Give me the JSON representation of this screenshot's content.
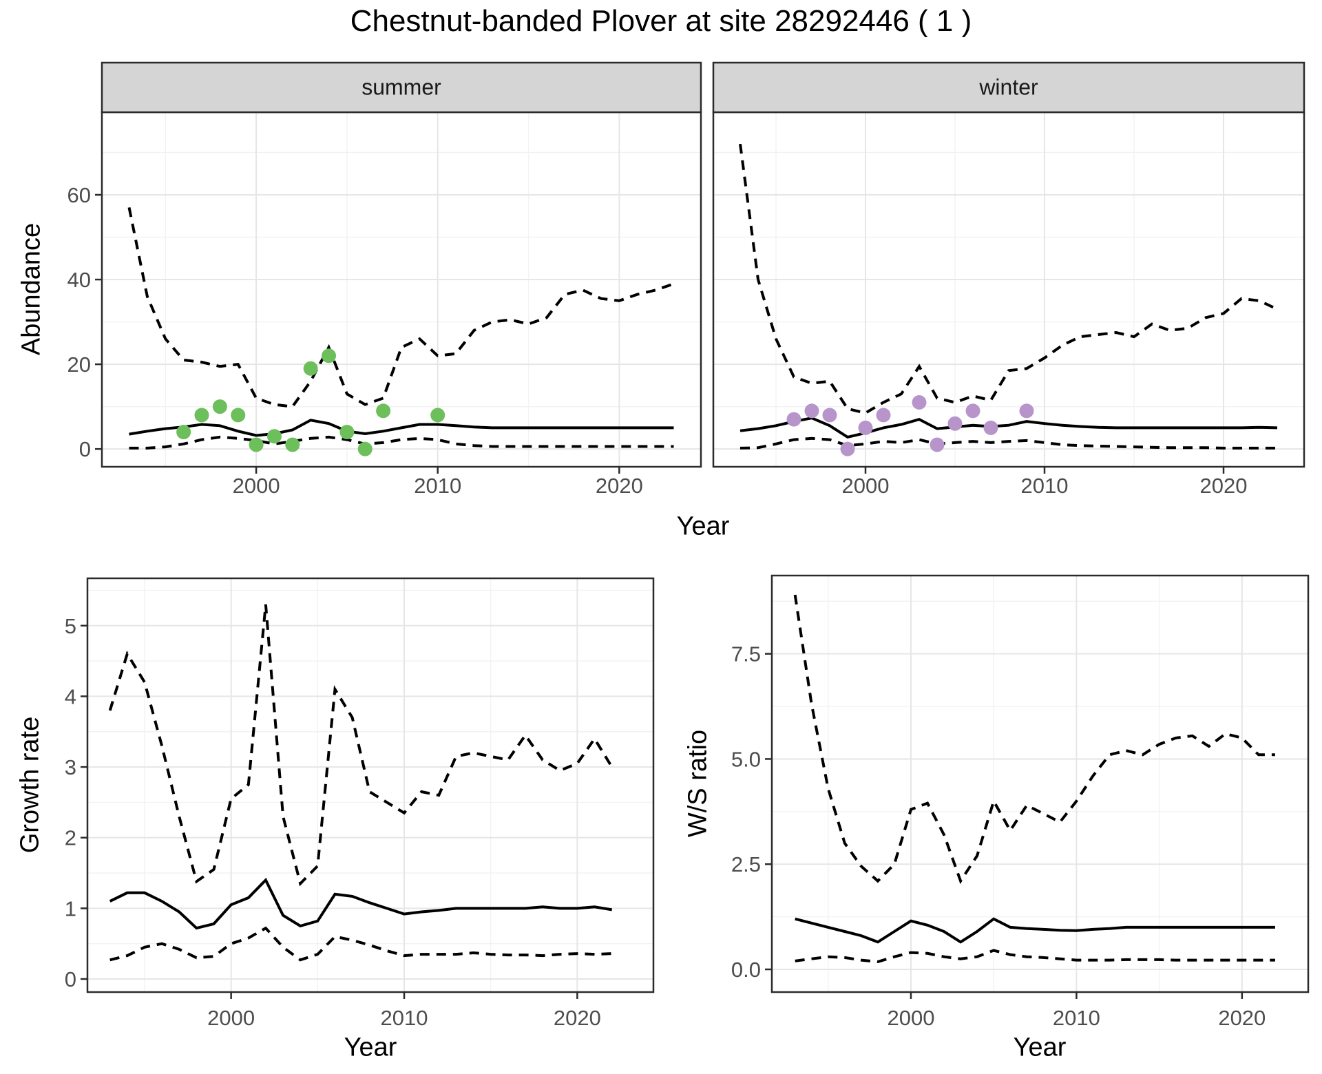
{
  "title": "Chestnut-banded Plover at site 28292446 ( 1 )",
  "axis_labels": {
    "top_x": "Year",
    "top_y": "Abundance",
    "bottom_left_x": "Year",
    "bottom_left_y": "Growth rate",
    "bottom_right_x": "Year",
    "bottom_right_y": "W/S ratio"
  },
  "colors": {
    "summer_point": "#6CBF5A",
    "winter_point": "#B795CB",
    "line": "#000000",
    "strip_fill": "#D5D5D5",
    "panel_border": "#2B2B2B",
    "grid_major": "#E6E6E6",
    "grid_minor": "#F2F2F2",
    "axis_text": "#4D4D4D",
    "background": "#FFFFFF"
  },
  "chart_data": [
    {
      "id": "abundance-summer",
      "type": "line",
      "facet_label": "summer",
      "xlabel": "Year",
      "ylabel": "Abundance",
      "xlim": [
        1991.5,
        2024.5
      ],
      "ylim": [
        -4.2,
        79.5
      ],
      "xticks": [
        2000,
        2010,
        2020
      ],
      "xtick_labels": [
        "2000",
        "2010",
        "2020"
      ],
      "x_minor": [
        1995,
        2005,
        2015
      ],
      "yticks": [
        0,
        20,
        40,
        60
      ],
      "ytick_labels": [
        "0",
        "20",
        "40",
        "60"
      ],
      "y_minor": [
        10,
        30,
        50,
        70
      ],
      "grid": true,
      "legend": "none",
      "years": [
        1993,
        1994,
        1995,
        1996,
        1997,
        1998,
        1999,
        2000,
        2001,
        2002,
        2003,
        2004,
        2005,
        2006,
        2007,
        2008,
        2009,
        2010,
        2011,
        2012,
        2013,
        2014,
        2015,
        2016,
        2017,
        2018,
        2019,
        2020,
        2021,
        2022,
        2023
      ],
      "series": [
        {
          "name": "upper-95ci",
          "style": "dashed",
          "values": [
            57,
            36,
            26,
            21,
            20.5,
            19.5,
            20,
            12,
            10.5,
            10,
            16,
            24,
            13,
            10.5,
            12,
            24,
            26,
            22,
            22.5,
            28,
            30,
            30.5,
            29.5,
            31,
            36.5,
            37.5,
            35.5,
            35,
            36.5,
            37.5,
            39
          ]
        },
        {
          "name": "lower-95ci",
          "style": "dashed",
          "values": [
            0.2,
            0.2,
            0.5,
            1.2,
            2.2,
            2.8,
            2.5,
            2,
            1.2,
            1.8,
            2.5,
            2.8,
            2.2,
            1.2,
            1.5,
            2.2,
            2.5,
            2.2,
            1.2,
            0.8,
            0.6,
            0.6,
            0.6,
            0.6,
            0.6,
            0.6,
            0.6,
            0.6,
            0.6,
            0.6,
            0.6
          ]
        },
        {
          "name": "median",
          "style": "solid",
          "values": [
            3.5,
            4.2,
            4.8,
            5.2,
            5.8,
            5.5,
            4.2,
            3.2,
            3.6,
            4.5,
            6.8,
            6,
            4.2,
            3.6,
            4.2,
            5,
            5.8,
            5.8,
            5.5,
            5.2,
            5,
            5,
            5,
            5,
            5,
            5,
            5,
            5,
            5,
            5,
            5
          ]
        }
      ],
      "points": {
        "name": "observed-counts",
        "color_key": "summer_point",
        "data": [
          [
            1996,
            4
          ],
          [
            1997,
            8
          ],
          [
            1998,
            10
          ],
          [
            1999,
            8
          ],
          [
            2000,
            1
          ],
          [
            2001,
            3
          ],
          [
            2002,
            1
          ],
          [
            2003,
            19
          ],
          [
            2004,
            22
          ],
          [
            2005,
            4
          ],
          [
            2006,
            0
          ],
          [
            2007,
            9
          ],
          [
            2010,
            8
          ]
        ]
      }
    },
    {
      "id": "abundance-winter",
      "type": "line",
      "facet_label": "winter",
      "xlabel": "Year",
      "ylabel": "Abundance",
      "xlim": [
        1991.5,
        2024.5
      ],
      "ylim": [
        -4.2,
        79.5
      ],
      "xticks": [
        2000,
        2010,
        2020
      ],
      "xtick_labels": [
        "2000",
        "2010",
        "2020"
      ],
      "x_minor": [
        1995,
        2005,
        2015
      ],
      "yticks": [
        0,
        20,
        40,
        60
      ],
      "ytick_labels": [
        "0",
        "20",
        "40",
        "60"
      ],
      "y_minor": [
        10,
        30,
        50,
        70
      ],
      "grid": true,
      "legend": "none",
      "years": [
        1993,
        1994,
        1995,
        1996,
        1997,
        1998,
        1999,
        2000,
        2001,
        2002,
        2003,
        2004,
        2005,
        2006,
        2007,
        2008,
        2009,
        2010,
        2011,
        2012,
        2013,
        2014,
        2015,
        2016,
        2017,
        2018,
        2019,
        2020,
        2021,
        2022,
        2023
      ],
      "series": [
        {
          "name": "upper-95ci",
          "style": "dashed",
          "values": [
            72,
            40,
            26,
            17,
            15.5,
            16,
            9.5,
            8.5,
            11,
            13,
            19.5,
            12,
            11,
            12.5,
            11.5,
            18.5,
            19,
            21.5,
            24.5,
            26.5,
            27,
            27.5,
            26.5,
            29.5,
            28,
            28.5,
            31,
            32,
            35.5,
            35,
            33
          ]
        },
        {
          "name": "lower-95ci",
          "style": "dashed",
          "values": [
            0.2,
            0.3,
            1.2,
            2.2,
            2.5,
            2.2,
            0.8,
            1.2,
            1.8,
            1.5,
            2.2,
            1.2,
            1.5,
            1.8,
            1.5,
            1.8,
            2,
            1.5,
            1,
            0.8,
            0.7,
            0.6,
            0.5,
            0.4,
            0.3,
            0.3,
            0.3,
            0.2,
            0.2,
            0.2,
            0.2
          ]
        },
        {
          "name": "median",
          "style": "solid",
          "values": [
            4.3,
            4.8,
            5.5,
            6.5,
            7.3,
            5.5,
            2.8,
            3.8,
            5,
            5.8,
            7,
            4.8,
            5.2,
            5.6,
            5.3,
            5.6,
            6.5,
            6,
            5.6,
            5.3,
            5.1,
            5,
            5,
            5,
            5,
            5,
            5,
            5,
            5,
            5.1,
            5
          ]
        }
      ],
      "points": {
        "name": "observed-counts",
        "color_key": "winter_point",
        "data": [
          [
            1996,
            7
          ],
          [
            1997,
            9
          ],
          [
            1998,
            8
          ],
          [
            1999,
            0
          ],
          [
            2000,
            5
          ],
          [
            2001,
            8
          ],
          [
            2003,
            11
          ],
          [
            2004,
            1
          ],
          [
            2005,
            6
          ],
          [
            2006,
            9
          ],
          [
            2007,
            5
          ],
          [
            2009,
            9
          ]
        ]
      }
    },
    {
      "id": "growth-rate",
      "type": "line",
      "facet_label": "",
      "xlabel": "Year",
      "ylabel": "Growth rate",
      "xlim": [
        1991.7,
        2024.4
      ],
      "ylim": [
        -0.185,
        5.67
      ],
      "xticks": [
        2000,
        2010,
        2020
      ],
      "xtick_labels": [
        "2000",
        "2010",
        "2020"
      ],
      "x_minor": [
        1995,
        2005,
        2015
      ],
      "yticks": [
        0,
        1,
        2,
        3,
        4,
        5
      ],
      "ytick_labels": [
        "0",
        "1",
        "2",
        "3",
        "4",
        "5"
      ],
      "y_minor": [
        0.5,
        1.5,
        2.5,
        3.5,
        4.5,
        5.5
      ],
      "grid": true,
      "legend": "none",
      "years": [
        1993,
        1994,
        1995,
        1996,
        1997,
        1998,
        1999,
        2000,
        2001,
        2002,
        2003,
        2004,
        2005,
        2006,
        2007,
        2008,
        2009,
        2010,
        2011,
        2012,
        2013,
        2014,
        2015,
        2016,
        2017,
        2018,
        2019,
        2020,
        2021,
        2022
      ],
      "series": [
        {
          "name": "upper-95ci",
          "style": "dashed",
          "values": [
            3.8,
            4.6,
            4.2,
            3.3,
            2.3,
            1.38,
            1.55,
            2.55,
            2.75,
            5.3,
            2.3,
            1.35,
            1.6,
            4.1,
            3.7,
            2.65,
            2.5,
            2.35,
            2.65,
            2.6,
            3.15,
            3.2,
            3.15,
            3.1,
            3.45,
            3.1,
            2.95,
            3.05,
            3.4,
            3
          ]
        },
        {
          "name": "lower-95ci",
          "style": "dashed",
          "values": [
            0.27,
            0.33,
            0.45,
            0.5,
            0.42,
            0.3,
            0.32,
            0.5,
            0.58,
            0.72,
            0.45,
            0.27,
            0.35,
            0.6,
            0.55,
            0.48,
            0.4,
            0.33,
            0.35,
            0.35,
            0.35,
            0.37,
            0.35,
            0.34,
            0.34,
            0.33,
            0.35,
            0.36,
            0.35,
            0.36
          ]
        },
        {
          "name": "median",
          "style": "solid",
          "values": [
            1.1,
            1.22,
            1.22,
            1.1,
            0.95,
            0.72,
            0.78,
            1.05,
            1.15,
            1.4,
            0.9,
            0.75,
            0.82,
            1.2,
            1.17,
            1.08,
            1,
            0.92,
            0.95,
            0.97,
            1,
            1,
            1,
            1,
            1,
            1.02,
            1,
            1,
            1.02,
            0.98
          ]
        }
      ],
      "points": null
    },
    {
      "id": "ws-ratio",
      "type": "line",
      "facet_label": "",
      "xlabel": "Year",
      "ylabel": "W/S ratio",
      "xlim": [
        1991.6,
        2024.0
      ],
      "ylim": [
        -0.54,
        9.36
      ],
      "xticks": [
        2000,
        2010,
        2020
      ],
      "xtick_labels": [
        "2000",
        "2010",
        "2020"
      ],
      "x_minor": [
        1995,
        2005,
        2015
      ],
      "yticks": [
        0,
        2.5,
        5,
        7.5
      ],
      "ytick_labels": [
        "0.0",
        "2.5",
        "5.0",
        "7.5"
      ],
      "y_minor": [
        1.25,
        3.75,
        6.25,
        8.75
      ],
      "grid": true,
      "legend": "none",
      "years": [
        1993,
        1994,
        1995,
        1996,
        1997,
        1998,
        1999,
        2000,
        2001,
        2002,
        2003,
        2004,
        2005,
        2006,
        2007,
        2008,
        2009,
        2010,
        2011,
        2012,
        2013,
        2014,
        2015,
        2016,
        2017,
        2018,
        2019,
        2020,
        2021,
        2022
      ],
      "series": [
        {
          "name": "upper-95ci",
          "style": "dashed",
          "values": [
            8.9,
            6.3,
            4.3,
            3,
            2.45,
            2.1,
            2.5,
            3.8,
            3.95,
            3.2,
            2.1,
            2.7,
            4,
            3.3,
            3.9,
            3.7,
            3.5,
            4,
            4.6,
            5.1,
            5.2,
            5.1,
            5.35,
            5.5,
            5.55,
            5.3,
            5.6,
            5.5,
            5.1,
            5.1
          ]
        },
        {
          "name": "lower-95ci",
          "style": "dashed",
          "values": [
            0.2,
            0.25,
            0.3,
            0.28,
            0.22,
            0.18,
            0.3,
            0.4,
            0.38,
            0.3,
            0.25,
            0.3,
            0.45,
            0.35,
            0.3,
            0.28,
            0.25,
            0.22,
            0.22,
            0.22,
            0.23,
            0.23,
            0.23,
            0.22,
            0.22,
            0.22,
            0.22,
            0.22,
            0.22,
            0.22
          ]
        },
        {
          "name": "median",
          "style": "solid",
          "values": [
            1.2,
            1.1,
            1,
            0.9,
            0.8,
            0.65,
            0.9,
            1.15,
            1.05,
            0.9,
            0.65,
            0.9,
            1.2,
            1,
            0.97,
            0.95,
            0.93,
            0.92,
            0.95,
            0.97,
            1,
            1,
            1,
            1,
            1,
            1,
            1,
            1,
            1,
            1
          ]
        }
      ],
      "points": null
    }
  ]
}
